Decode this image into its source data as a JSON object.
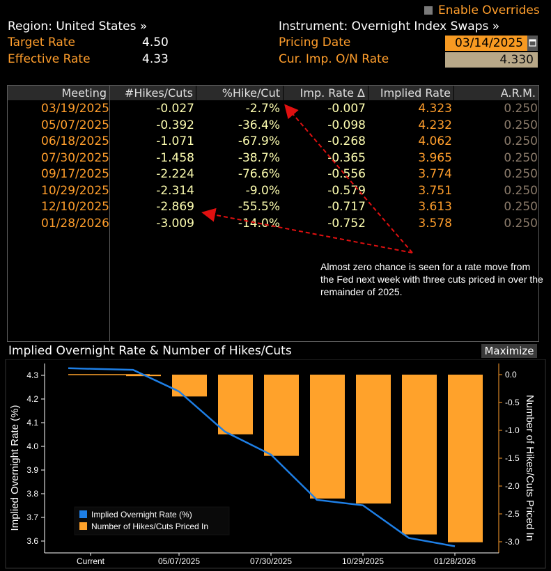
{
  "header": {
    "enable_overrides": "Enable Overrides",
    "region": "Region: United States »",
    "instrument": "Instrument: Overnight Index Swaps »",
    "target_rate_label": "Target Rate",
    "target_rate_value": "4.50",
    "effective_rate_label": "Effective Rate",
    "effective_rate_value": "4.33",
    "pricing_date_label": "Pricing Date",
    "pricing_date_value": "03/14/2025",
    "cur_imp_label": "Cur. Imp. O/N Rate",
    "cur_imp_value": "4.330"
  },
  "table": {
    "columns": [
      "Meeting",
      "#Hikes/Cuts",
      "%Hike/Cut",
      "Imp. Rate Δ",
      "Implied Rate",
      "A.R.M."
    ],
    "rows": [
      {
        "meeting": "03/19/2025",
        "hikes": "-0.027",
        "pct": "-2.7%",
        "delta": "-0.007",
        "implied": "4.323",
        "arm": "0.250"
      },
      {
        "meeting": "05/07/2025",
        "hikes": "-0.392",
        "pct": "-36.4%",
        "delta": "-0.098",
        "implied": "4.232",
        "arm": "0.250"
      },
      {
        "meeting": "06/18/2025",
        "hikes": "-1.071",
        "pct": "-67.9%",
        "delta": "-0.268",
        "implied": "4.062",
        "arm": "0.250"
      },
      {
        "meeting": "07/30/2025",
        "hikes": "-1.458",
        "pct": "-38.7%",
        "delta": "-0.365",
        "implied": "3.965",
        "arm": "0.250"
      },
      {
        "meeting": "09/17/2025",
        "hikes": "-2.224",
        "pct": "-76.6%",
        "delta": "-0.556",
        "implied": "3.774",
        "arm": "0.250"
      },
      {
        "meeting": "10/29/2025",
        "hikes": "-2.314",
        "pct": "-9.0%",
        "delta": "-0.579",
        "implied": "3.751",
        "arm": "0.250"
      },
      {
        "meeting": "12/10/2025",
        "hikes": "-2.869",
        "pct": "-55.5%",
        "delta": "-0.717",
        "implied": "3.613",
        "arm": "0.250"
      },
      {
        "meeting": "01/28/2026",
        "hikes": "-3.009",
        "pct": "-14.0%",
        "delta": "-0.752",
        "implied": "3.578",
        "arm": "0.250"
      }
    ]
  },
  "annotation": "Almost zero chance is seen for a rate move from the Fed next week with three cuts priced in over the remainder of 2025.",
  "chart_panel": {
    "title": "Implied Overnight Rate & Number of Hikes/Cuts",
    "maximize": "Maximize"
  },
  "chart_data": {
    "type": "bar",
    "title": "Implied Overnight Rate & Number of Hikes/Cuts",
    "categories": [
      "Current",
      "03/19/2025",
      "05/07/2025",
      "06/18/2025",
      "07/30/2025",
      "09/17/2025",
      "10/29/2025",
      "12/10/2025",
      "01/28/2026"
    ],
    "x_tick_labels": [
      "Current",
      "05/07/2025",
      "07/30/2025",
      "10/29/2025",
      "01/28/2026"
    ],
    "series": [
      {
        "name": "Implied Overnight Rate (%)",
        "type": "line",
        "axis": "left",
        "color": "#1e7fe6",
        "values": [
          4.33,
          4.323,
          4.232,
          4.062,
          3.965,
          3.774,
          3.751,
          3.613,
          3.578
        ]
      },
      {
        "name": "Number of Hikes/Cuts Priced In",
        "type": "bar",
        "axis": "right",
        "color": "#ffa22b",
        "values": [
          null,
          -0.027,
          -0.392,
          -1.071,
          -1.458,
          -2.224,
          -2.314,
          -2.869,
          -3.009
        ]
      }
    ],
    "ylabel_left": "Implied Overnight Rate (%)",
    "ylabel_right": "Number of Hikes/Cuts Priced In",
    "ylim_left": [
      3.55,
      4.35
    ],
    "yticks_left": [
      "4.3",
      "4.2",
      "4.1",
      "4.0",
      "3.9",
      "3.8",
      "3.7",
      "3.6"
    ],
    "ylim_right": [
      -3.2,
      0.2
    ],
    "yticks_right": [
      "0.0",
      "-0.5",
      "-1.0",
      "-1.5",
      "-2.0",
      "-2.5",
      "-3.0"
    ],
    "legend_placement": "bottom-left",
    "grid": false
  }
}
